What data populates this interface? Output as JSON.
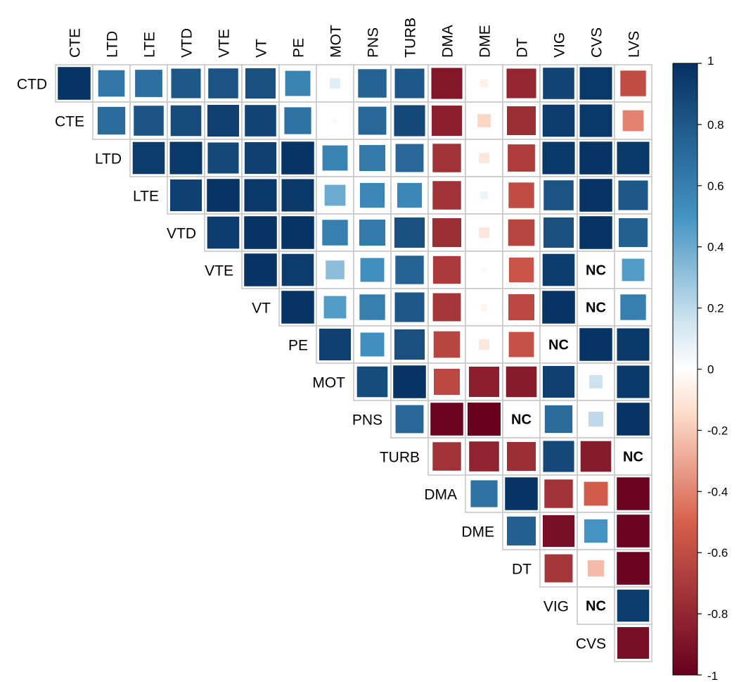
{
  "chart_data": {
    "type": "heatmap",
    "title": "",
    "column_labels": [
      "CTE",
      "LTD",
      "LTE",
      "VTD",
      "VTE",
      "VT",
      "PE",
      "MOT",
      "PNS",
      "TURB",
      "DMA",
      "DME",
      "DT",
      "VIG",
      "CVS",
      "LVS"
    ],
    "row_labels": [
      "CTD",
      "CTE",
      "LTD",
      "LTE",
      "VTD",
      "VTE",
      "VT",
      "PE",
      "MOT",
      "PNS",
      "TURB",
      "DMA",
      "DME",
      "DT",
      "VIG",
      "CVS"
    ],
    "missing_label": "NC",
    "values": [
      [
        0.98,
        0.64,
        0.68,
        0.8,
        0.82,
        0.84,
        0.58,
        0.1,
        0.74,
        0.8,
        -0.88,
        -0.06,
        -0.8,
        0.9,
        0.96,
        -0.6
      ],
      [
        null,
        0.7,
        0.82,
        0.86,
        0.92,
        0.9,
        0.66,
        0.02,
        0.72,
        0.88,
        -0.84,
        -0.16,
        -0.76,
        0.94,
        0.96,
        -0.4
      ],
      [
        null,
        null,
        0.94,
        0.96,
        0.88,
        0.92,
        0.98,
        0.58,
        0.62,
        0.72,
        -0.74,
        -0.1,
        -0.68,
        0.96,
        0.98,
        0.96
      ],
      [
        null,
        null,
        null,
        0.92,
        0.98,
        0.96,
        0.96,
        0.4,
        0.56,
        0.56,
        -0.74,
        0.06,
        -0.6,
        0.82,
        0.98,
        0.8
      ],
      [
        null,
        null,
        null,
        null,
        0.94,
        0.98,
        0.98,
        0.6,
        0.62,
        0.84,
        -0.76,
        -0.1,
        -0.64,
        0.84,
        0.98,
        0.76
      ],
      [
        null,
        null,
        null,
        null,
        null,
        0.98,
        0.94,
        0.32,
        0.52,
        0.74,
        -0.7,
        0.02,
        -0.56,
        0.94,
        null,
        0.46
      ],
      [
        null,
        null,
        null,
        null,
        null,
        null,
        0.98,
        0.46,
        0.6,
        0.8,
        -0.72,
        -0.04,
        -0.62,
        0.98,
        null,
        0.6
      ],
      [
        null,
        null,
        null,
        null,
        null,
        null,
        null,
        0.92,
        0.52,
        0.84,
        -0.64,
        -0.1,
        -0.58,
        null,
        0.98,
        0.96
      ],
      [
        null,
        null,
        null,
        null,
        null,
        null,
        null,
        null,
        0.86,
        0.98,
        -0.62,
        -0.84,
        -0.86,
        0.92,
        0.16,
        0.96
      ],
      [
        null,
        null,
        null,
        null,
        null,
        null,
        null,
        null,
        null,
        0.72,
        -0.98,
        -1.0,
        null,
        0.7,
        0.2,
        0.98
      ],
      [
        null,
        null,
        null,
        null,
        null,
        null,
        null,
        null,
        null,
        null,
        -0.74,
        -0.82,
        -0.76,
        0.88,
        -0.86,
        null
      ],
      [
        null,
        null,
        null,
        null,
        null,
        null,
        null,
        null,
        null,
        null,
        null,
        0.66,
        0.98,
        -0.74,
        -0.52,
        -0.98
      ],
      [
        null,
        null,
        null,
        null,
        null,
        null,
        null,
        null,
        null,
        null,
        null,
        null,
        0.76,
        -0.92,
        0.5,
        -0.98
      ],
      [
        null,
        null,
        null,
        null,
        null,
        null,
        null,
        null,
        null,
        null,
        null,
        null,
        null,
        -0.72,
        -0.24,
        -0.98
      ],
      [
        null,
        null,
        null,
        null,
        null,
        null,
        null,
        null,
        null,
        null,
        null,
        null,
        null,
        null,
        null,
        0.94
      ],
      [
        null,
        null,
        null,
        null,
        null,
        null,
        null,
        null,
        null,
        null,
        null,
        null,
        null,
        null,
        null,
        -0.92
      ]
    ],
    "colorbar": {
      "ticks": [
        "1",
        "0.8",
        "0.6",
        "0.4",
        "0.2",
        "0",
        "-0.2",
        "-0.4",
        "-0.6",
        "-0.8",
        "-1"
      ],
      "range": [
        -1,
        1
      ]
    },
    "colors": {
      "neg_strong": "#67001f",
      "neg_mid": "#d6604d",
      "neg_light": "#fddbc7",
      "zero": "#ffffff",
      "pos_light": "#d1e5f0",
      "pos_mid": "#4393c3",
      "pos_strong": "#053061",
      "grid": "#c8c8c8"
    }
  }
}
